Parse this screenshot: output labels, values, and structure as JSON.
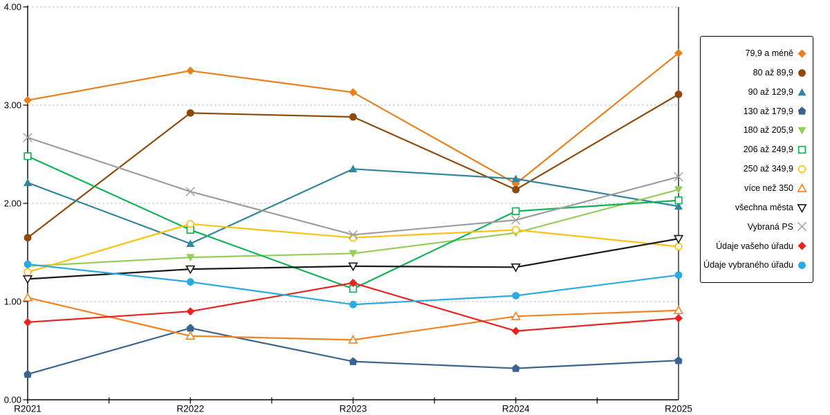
{
  "chart_data": {
    "type": "line",
    "title": "",
    "x_axis": {
      "labels": [
        "R2021",
        "R2022",
        "R2023",
        "R2024",
        "R2025"
      ]
    },
    "y_axis": {
      "min": 0,
      "max": 4,
      "step": 1,
      "tick_labels": [
        "0.00",
        "1.00",
        "2.00",
        "3.00",
        "4.00"
      ]
    },
    "grid": "horizontal-dashed",
    "legend_position": "right",
    "series": [
      {
        "name": "79,9 a méně",
        "marker": "diamond",
        "color": "#E8801E",
        "values": [
          3.05,
          3.35,
          3.13,
          2.2,
          3.53
        ]
      },
      {
        "name": "80 až 89,9",
        "marker": "circle",
        "color": "#8E4A0D",
        "values": [
          1.65,
          2.92,
          2.88,
          2.14,
          3.11
        ]
      },
      {
        "name": "90 až 129,9",
        "marker": "triangle",
        "color": "#31859C",
        "values": [
          2.21,
          1.59,
          2.35,
          2.25,
          1.97
        ]
      },
      {
        "name": "130 až 179,9",
        "marker": "pentagon",
        "color": "#3A6390",
        "values": [
          0.26,
          0.73,
          0.39,
          0.32,
          0.4
        ]
      },
      {
        "name": "180 až 205,9",
        "marker": "triangle-down",
        "color": "#94CE58",
        "values": [
          1.36,
          1.45,
          1.49,
          1.7,
          2.14
        ]
      },
      {
        "name": "206 až 249,9",
        "marker": "square-open",
        "color": "#12B357",
        "values": [
          2.48,
          1.73,
          1.13,
          1.92,
          2.03
        ]
      },
      {
        "name": "250 až 349,9",
        "marker": "circle-open",
        "color": "#FEC20E",
        "values": [
          1.3,
          1.79,
          1.65,
          1.73,
          1.56
        ]
      },
      {
        "name": "více než 350",
        "marker": "triangle-open",
        "color": "#F58220",
        "values": [
          1.04,
          0.65,
          0.61,
          0.85,
          0.91
        ]
      },
      {
        "name": "všechna města",
        "marker": "triangle-down-open",
        "color": "#1A1A1A",
        "values": [
          1.23,
          1.33,
          1.36,
          1.35,
          1.64
        ]
      },
      {
        "name": "Vybraná PS",
        "marker": "x",
        "color": "#9D9D9D",
        "values": [
          2.67,
          2.12,
          1.68,
          1.83,
          2.27
        ]
      },
      {
        "name": "Údaje vašeho úřadu",
        "marker": "diamond",
        "color": "#E8231F",
        "values": [
          0.79,
          0.9,
          1.19,
          0.7,
          0.83
        ]
      },
      {
        "name": "Údaje vybraného úřadu",
        "marker": "circle",
        "color": "#29ABE2",
        "values": [
          1.38,
          1.2,
          0.97,
          1.06,
          1.27
        ]
      }
    ],
    "colors": {
      "grid": "#BDBDBD",
      "axis": "#000000",
      "background": "#FFFFFF",
      "legend_border": "#000000"
    }
  }
}
